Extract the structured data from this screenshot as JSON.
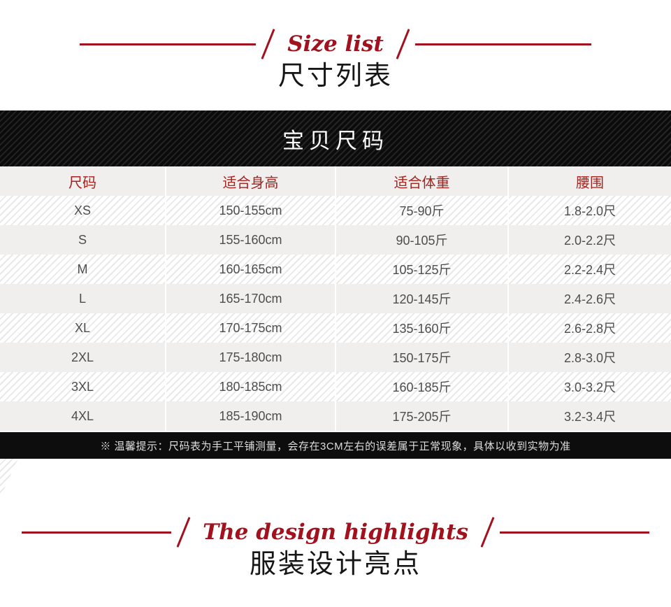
{
  "size_section": {
    "title_en": "Size list",
    "title_cn": "尺寸列表"
  },
  "banner": {
    "label": "宝贝尺码"
  },
  "table": {
    "headers": [
      "尺码",
      "适合身高",
      "适合体重",
      "腰围"
    ],
    "rows": [
      [
        "XS",
        "150-155cm",
        "75-90斤",
        "1.8-2.0尺"
      ],
      [
        "S",
        "155-160cm",
        "90-105斤",
        "2.0-2.2尺"
      ],
      [
        "M",
        "160-165cm",
        "105-125斤",
        "2.2-2.4尺"
      ],
      [
        "L",
        "165-170cm",
        "120-145斤",
        "2.4-2.6尺"
      ],
      [
        "XL",
        "170-175cm",
        "135-160斤",
        "2.6-2.8尺"
      ],
      [
        "2XL",
        "175-180cm",
        "150-175斤",
        "2.8-3.0尺"
      ],
      [
        "3XL",
        "180-185cm",
        "160-185斤",
        "3.0-3.2尺"
      ],
      [
        "4XL",
        "185-190cm",
        "175-205斤",
        "3.2-3.4尺"
      ]
    ]
  },
  "note": {
    "text": "※ 温馨提示：尺码表为手工平铺测量，会存在3CM左右的误差属于正常现象，具体以收到实物为准"
  },
  "design_section": {
    "title_en": "The design highlights",
    "title_cn": "服装设计亮点"
  },
  "colors": {
    "accent_red": "#a2121e",
    "table_header_red": "#a4231f",
    "banner_black": "#0d0d0d",
    "row_gray": "#f0efee",
    "stripe_gray": "#e9e9e9",
    "data_text": "#4d4d4d"
  }
}
